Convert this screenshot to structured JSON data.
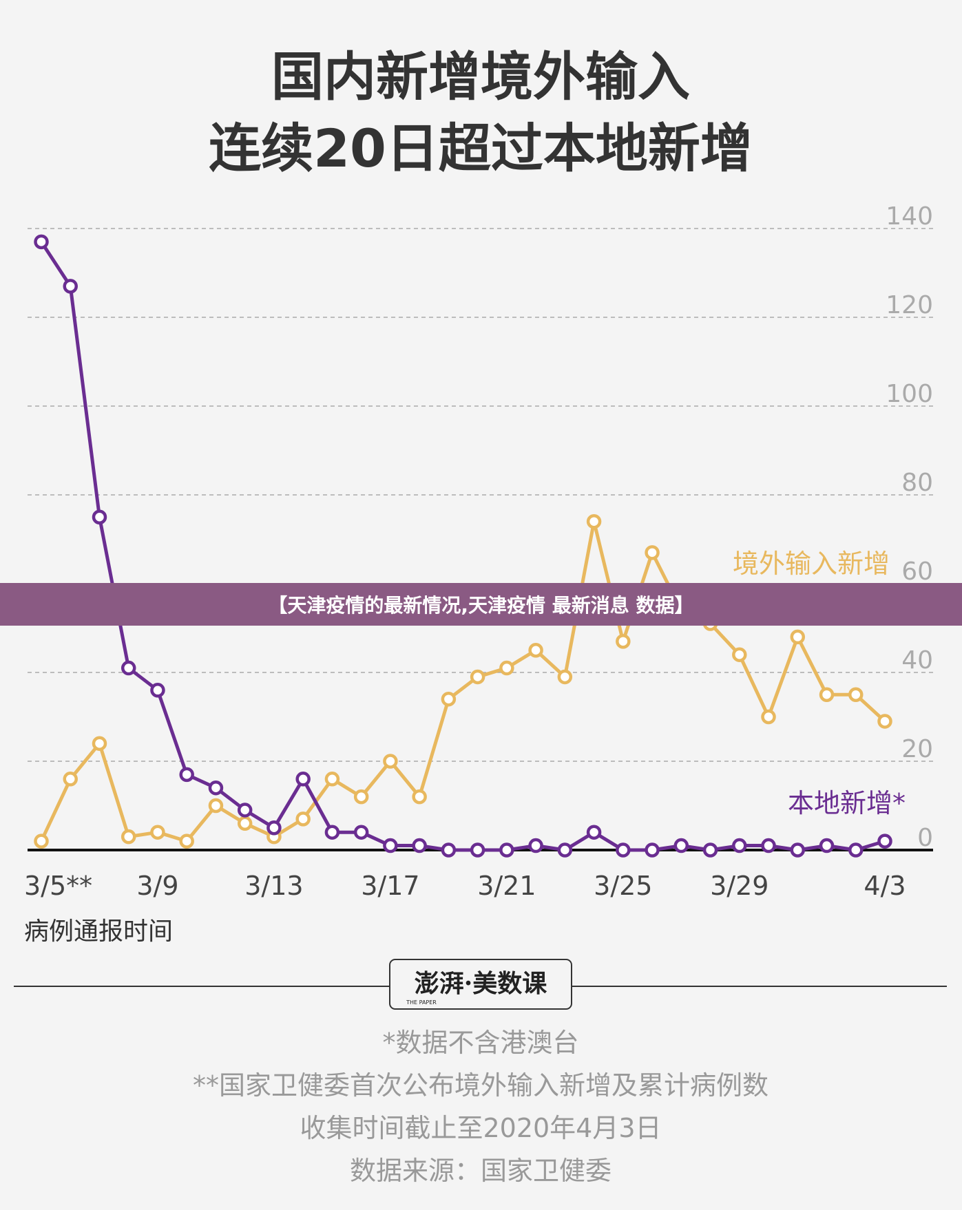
{
  "overlay_banner": "【天津疫情的最新情况,天津疫情 最新消息 数据】",
  "chart_data": {
    "type": "line",
    "title": "国内新增境外输入",
    "subtitle": "连续20日超过本地新增",
    "xlabel": "病例通报时间",
    "ylabel": "",
    "ylim": [
      0,
      140
    ],
    "yticks": [
      0,
      20,
      40,
      60,
      80,
      100,
      120,
      140
    ],
    "grid": true,
    "x": [
      "3/5",
      "3/6",
      "3/7",
      "3/8",
      "3/9",
      "3/10",
      "3/11",
      "3/12",
      "3/13",
      "3/14",
      "3/15",
      "3/16",
      "3/17",
      "3/18",
      "3/19",
      "3/20",
      "3/21",
      "3/22",
      "3/23",
      "3/24",
      "3/25",
      "3/26",
      "3/27",
      "3/28",
      "3/29",
      "3/30",
      "3/31",
      "4/1",
      "4/2",
      "4/3"
    ],
    "xtick_labels": [
      {
        "at": "3/5",
        "label": "3/5**"
      },
      {
        "at": "3/9",
        "label": "3/9"
      },
      {
        "at": "3/13",
        "label": "3/13"
      },
      {
        "at": "3/17",
        "label": "3/17"
      },
      {
        "at": "3/21",
        "label": "3/21"
      },
      {
        "at": "3/25",
        "label": "3/25"
      },
      {
        "at": "3/29",
        "label": "3/29"
      },
      {
        "at": "4/3",
        "label": "4/3"
      }
    ],
    "series": [
      {
        "name": "境外输入新增",
        "color": "#e8b85e",
        "values": [
          2,
          16,
          24,
          3,
          4,
          2,
          10,
          6,
          3,
          7,
          16,
          12,
          20,
          12,
          34,
          39,
          41,
          45,
          39,
          74,
          47,
          67,
          54,
          51,
          44,
          30,
          48,
          35,
          35,
          29
        ]
      },
      {
        "name": "本地新增*",
        "color": "#6a2d91",
        "values": [
          137,
          127,
          75,
          41,
          36,
          17,
          14,
          9,
          5,
          16,
          4,
          4,
          1,
          1,
          0,
          0,
          0,
          1,
          0,
          4,
          0,
          0,
          1,
          0,
          1,
          1,
          0,
          1,
          0,
          2
        ]
      }
    ]
  },
  "footer": {
    "logo_text": "澎湃·美数课",
    "logo_subtext": "THE PAPER",
    "notes": [
      "*数据不含港澳台",
      "**国家卫健委首次公布境外输入新增及累计病例数",
      "收集时间截止至2020年4月3日",
      "数据来源：国家卫健委"
    ]
  }
}
